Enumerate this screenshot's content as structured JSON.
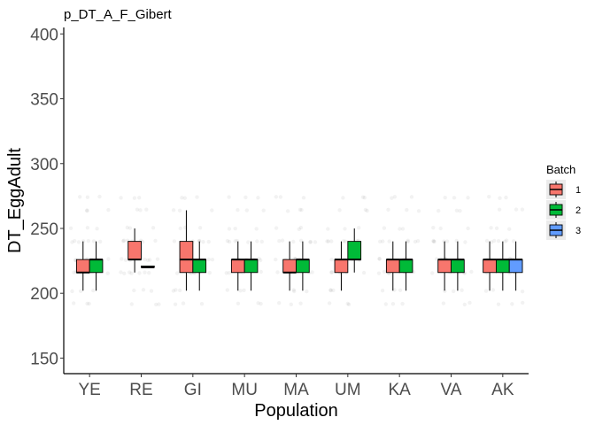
{
  "chart_data": {
    "type": "boxplot",
    "title": "p_DT_A_F_Gibert",
    "xlabel": "Population",
    "ylabel": "DT_EggAdult",
    "ylim": [
      138,
      405
    ],
    "yticks": [
      150,
      200,
      250,
      300,
      350,
      400
    ],
    "categories": [
      "YE",
      "RE",
      "GI",
      "MU",
      "MA",
      "UM",
      "KA",
      "VA",
      "AK"
    ],
    "grid": false,
    "legend": {
      "title": "Batch",
      "placement": "right",
      "entries": [
        {
          "label": "1",
          "color": "#F8766D"
        },
        {
          "label": "2",
          "color": "#00BA38"
        },
        {
          "label": "3",
          "color": "#619CFF"
        }
      ]
    },
    "groups": [
      {
        "category": "YE",
        "boxes": [
          {
            "batch": "1",
            "min": 202,
            "q1": 216,
            "median": 216,
            "q3": 226,
            "max": 240
          },
          {
            "batch": "2",
            "min": 202,
            "q1": 216,
            "median": 226,
            "q3": 226,
            "max": 240
          }
        ]
      },
      {
        "category": "RE",
        "boxes": [
          {
            "batch": "1",
            "min": 216,
            "q1": 226,
            "median": 226,
            "q3": 240,
            "max": 250
          },
          {
            "batch": "2",
            "min": 220,
            "q1": 220,
            "median": 220,
            "q3": 221,
            "max": 221
          }
        ]
      },
      {
        "category": "GI",
        "boxes": [
          {
            "batch": "1",
            "min": 202,
            "q1": 216,
            "median": 226,
            "q3": 240,
            "max": 264
          },
          {
            "batch": "2",
            "min": 202,
            "q1": 216,
            "median": 226,
            "q3": 226,
            "max": 240
          }
        ]
      },
      {
        "category": "MU",
        "boxes": [
          {
            "batch": "1",
            "min": 202,
            "q1": 216,
            "median": 226,
            "q3": 226,
            "max": 240
          },
          {
            "batch": "2",
            "min": 202,
            "q1": 216,
            "median": 226,
            "q3": 226,
            "max": 240
          }
        ]
      },
      {
        "category": "MA",
        "boxes": [
          {
            "batch": "1",
            "min": 202,
            "q1": 216,
            "median": 216,
            "q3": 226,
            "max": 240
          },
          {
            "batch": "2",
            "min": 202,
            "q1": 216,
            "median": 226,
            "q3": 226,
            "max": 240
          }
        ]
      },
      {
        "category": "UM",
        "boxes": [
          {
            "batch": "1",
            "min": 202,
            "q1": 216,
            "median": 226,
            "q3": 226,
            "max": 240
          },
          {
            "batch": "2",
            "min": 216,
            "q1": 226,
            "median": 226,
            "q3": 240,
            "max": 250
          }
        ]
      },
      {
        "category": "KA",
        "boxes": [
          {
            "batch": "1",
            "min": 202,
            "q1": 216,
            "median": 226,
            "q3": 226,
            "max": 240
          },
          {
            "batch": "2",
            "min": 202,
            "q1": 216,
            "median": 226,
            "q3": 226,
            "max": 240
          }
        ]
      },
      {
        "category": "VA",
        "boxes": [
          {
            "batch": "1",
            "min": 202,
            "q1": 216,
            "median": 226,
            "q3": 226,
            "max": 240
          },
          {
            "batch": "2",
            "min": 202,
            "q1": 216,
            "median": 226,
            "q3": 226,
            "max": 240
          }
        ]
      },
      {
        "category": "AK",
        "boxes": [
          {
            "batch": "1",
            "min": 202,
            "q1": 216,
            "median": 226,
            "q3": 226,
            "max": 240
          },
          {
            "batch": "2",
            "min": 202,
            "q1": 216,
            "median": 226,
            "q3": 226,
            "max": 240
          },
          {
            "batch": "3",
            "min": 202,
            "q1": 216,
            "median": 226,
            "q3": 226,
            "max": 240
          }
        ]
      }
    ],
    "jitter_levels": [
      192,
      202,
      216,
      226,
      240,
      250,
      264,
      274
    ]
  }
}
